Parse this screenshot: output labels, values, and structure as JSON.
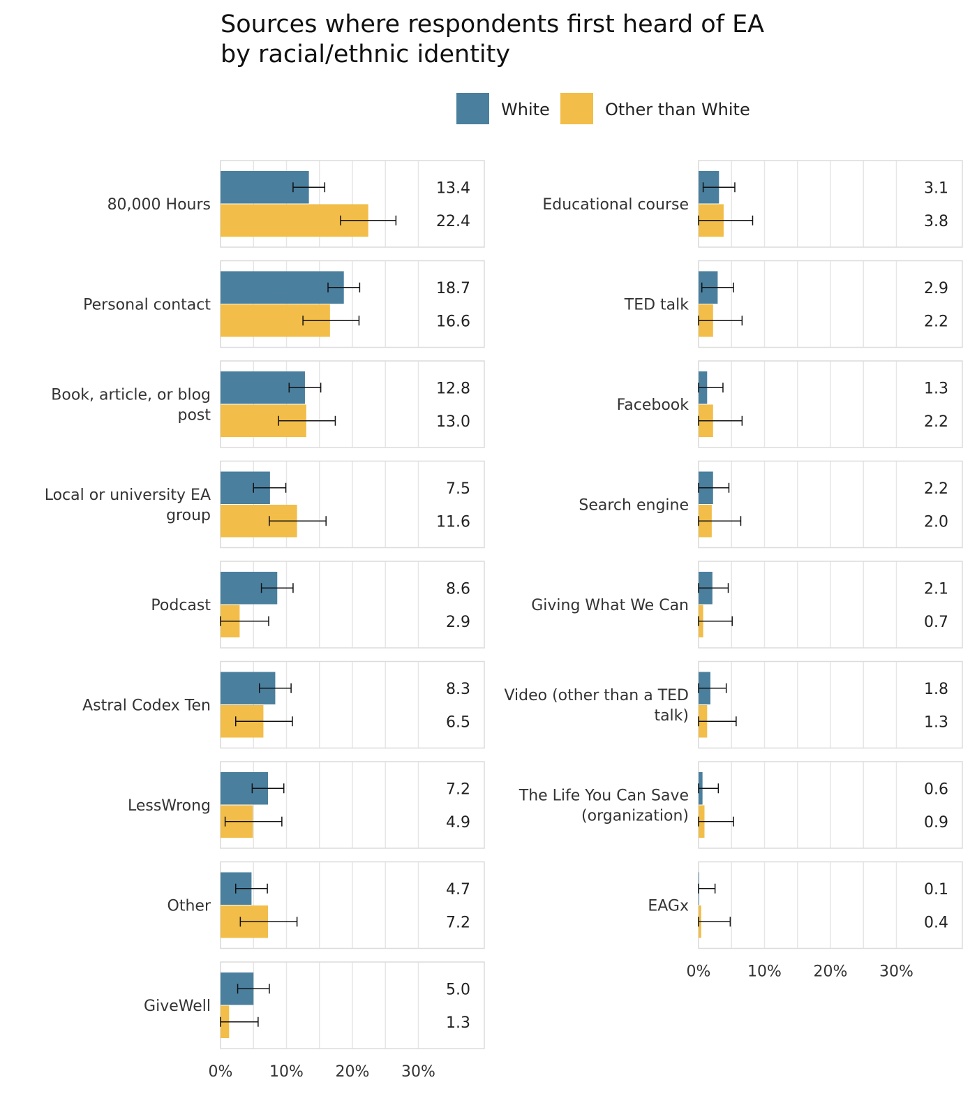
{
  "chart_data": {
    "type": "bar",
    "orientation": "horizontal",
    "title": "Sources where respondents first heard of EA by racial/ethnic identity",
    "title_lines": [
      "Sources where respondents first heard of EA",
      "by racial/ethnic identity"
    ],
    "legend": [
      {
        "name": "White",
        "color": "#4a7f9e"
      },
      {
        "name": "Other than White",
        "color": "#f2bd48"
      }
    ],
    "x_axis": {
      "range": [
        0,
        40
      ],
      "ticks": [
        0,
        10,
        20,
        30
      ],
      "tick_labels": [
        "0%",
        "10%",
        "20%",
        "30%"
      ]
    },
    "grid": true,
    "columns": [
      {
        "categories": [
          {
            "label": [
              "80,000 Hours"
            ],
            "white": 13.4,
            "white_label": "13.4",
            "white_ci": [
              11.0,
              15.8
            ],
            "other": 22.4,
            "other_label": "22.4",
            "other_ci": [
              18.2,
              26.6
            ]
          },
          {
            "label": [
              "Personal contact"
            ],
            "white": 18.7,
            "white_label": "18.7",
            "white_ci": [
              16.3,
              21.1
            ],
            "other": 16.6,
            "other_label": "16.6",
            "other_ci": [
              12.5,
              21.0
            ]
          },
          {
            "label": [
              "Book, article, or blog",
              "post"
            ],
            "white": 12.8,
            "white_label": "12.8",
            "white_ci": [
              10.4,
              15.2
            ],
            "other": 13.0,
            "other_label": "13.0",
            "other_ci": [
              8.8,
              17.4
            ]
          },
          {
            "label": [
              "Local or university EA",
              "group"
            ],
            "white": 7.5,
            "white_label": "7.5",
            "white_ci": [
              5.0,
              9.9
            ],
            "other": 11.6,
            "other_label": "11.6",
            "other_ci": [
              7.4,
              16.0
            ]
          },
          {
            "label": [
              "Podcast"
            ],
            "white": 8.6,
            "white_label": "8.6",
            "white_ci": [
              6.2,
              11.0
            ],
            "other": 2.9,
            "other_label": "2.9",
            "other_ci": [
              0.0,
              7.3
            ]
          },
          {
            "label": [
              "Astral Codex Ten"
            ],
            "white": 8.3,
            "white_label": "8.3",
            "white_ci": [
              5.9,
              10.7
            ],
            "other": 6.5,
            "other_label": "6.5",
            "other_ci": [
              2.3,
              10.9
            ]
          },
          {
            "label": [
              "LessWrong"
            ],
            "white": 7.2,
            "white_label": "7.2",
            "white_ci": [
              4.8,
              9.6
            ],
            "other": 4.9,
            "other_label": "4.9",
            "other_ci": [
              0.7,
              9.3
            ]
          },
          {
            "label": [
              "Other"
            ],
            "white": 4.7,
            "white_label": "4.7",
            "white_ci": [
              2.3,
              7.1
            ],
            "other": 7.2,
            "other_label": "7.2",
            "other_ci": [
              3.0,
              11.6
            ]
          },
          {
            "label": [
              "GiveWell"
            ],
            "white": 5.0,
            "white_label": "5.0",
            "white_ci": [
              2.6,
              7.4
            ],
            "other": 1.3,
            "other_label": "1.3",
            "other_ci": [
              0.0,
              5.7
            ]
          }
        ]
      },
      {
        "categories": [
          {
            "label": [
              "Educational course"
            ],
            "white": 3.1,
            "white_label": "3.1",
            "white_ci": [
              0.7,
              5.5
            ],
            "other": 3.8,
            "other_label": "3.8",
            "other_ci": [
              0.0,
              8.2
            ]
          },
          {
            "label": [
              "TED talk"
            ],
            "white": 2.9,
            "white_label": "2.9",
            "white_ci": [
              0.5,
              5.3
            ],
            "other": 2.2,
            "other_label": "2.2",
            "other_ci": [
              0.0,
              6.6
            ]
          },
          {
            "label": [
              "Facebook"
            ],
            "white": 1.3,
            "white_label": "1.3",
            "white_ci": [
              0.0,
              3.7
            ],
            "other": 2.2,
            "other_label": "2.2",
            "other_ci": [
              0.0,
              6.6
            ]
          },
          {
            "label": [
              "Search engine"
            ],
            "white": 2.2,
            "white_label": "2.2",
            "white_ci": [
              0.0,
              4.6
            ],
            "other": 2.0,
            "other_label": "2.0",
            "other_ci": [
              0.0,
              6.4
            ]
          },
          {
            "label": [
              "Giving What We Can"
            ],
            "white": 2.1,
            "white_label": "2.1",
            "white_ci": [
              0.0,
              4.5
            ],
            "other": 0.7,
            "other_label": "0.7",
            "other_ci": [
              0.0,
              5.1
            ]
          },
          {
            "label": [
              "Video (other than a TED",
              "talk)"
            ],
            "white": 1.8,
            "white_label": "1.8",
            "white_ci": [
              0.0,
              4.2
            ],
            "other": 1.3,
            "other_label": "1.3",
            "other_ci": [
              0.0,
              5.7
            ]
          },
          {
            "label": [
              "The Life You Can Save",
              "(organization)"
            ],
            "white": 0.6,
            "white_label": "0.6",
            "white_ci": [
              0.0,
              3.0
            ],
            "other": 0.9,
            "other_label": "0.9",
            "other_ci": [
              0.0,
              5.3
            ]
          },
          {
            "label": [
              "EAGx"
            ],
            "white": 0.1,
            "white_label": "0.1",
            "white_ci": [
              0.0,
              2.5
            ],
            "other": 0.4,
            "other_label": "0.4",
            "other_ci": [
              0.0,
              4.8
            ]
          }
        ]
      }
    ]
  }
}
